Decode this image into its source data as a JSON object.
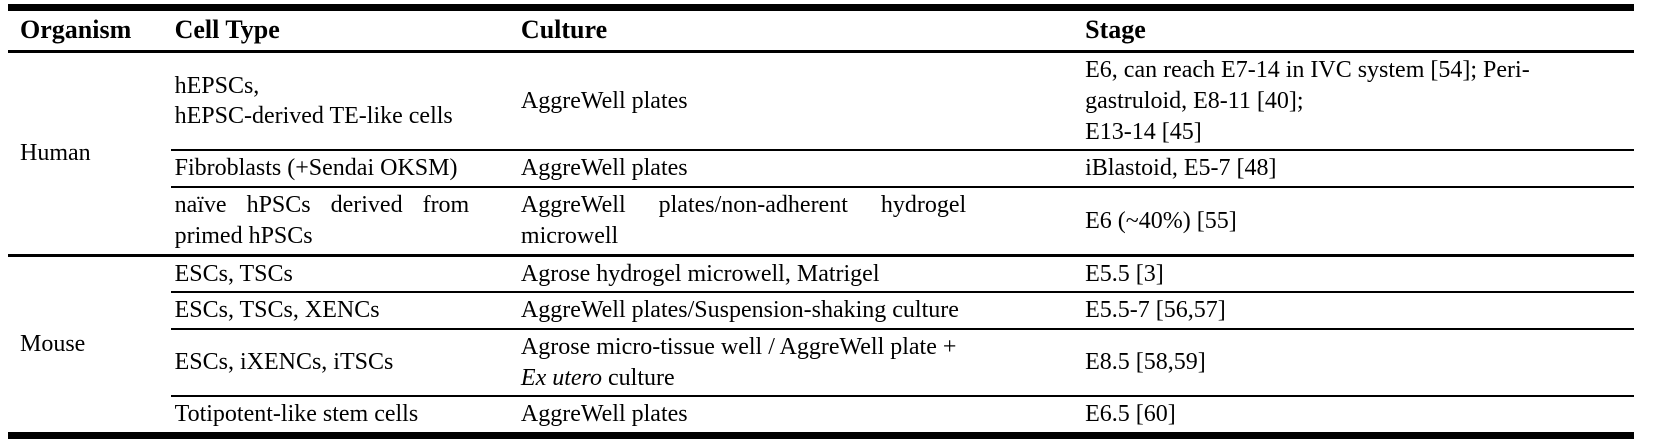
{
  "table": {
    "headers": {
      "organism": "Organism",
      "cell_type": "Cell Type",
      "culture": "Culture",
      "stage": "Stage"
    },
    "groups": [
      {
        "organism": "Human",
        "rows": [
          {
            "cell_type": "hEPSCs,\nhEPSC-derived TE-like cells",
            "culture": "AggreWell plates",
            "stage": "E6, can reach E7-14 in IVC system [54]; Peri-\ngastruloid, E8-11 [40];\nE13-14 [45]"
          },
          {
            "cell_type": "Fibroblasts (+Sendai OKSM)",
            "culture": "AggreWell plates",
            "stage": "iBlastoid, E5-7 [48]"
          },
          {
            "cell_type": "naïve hPSCs derived from\nprimed hPSCs",
            "culture": "AggreWell plates/non-adherent hydrogel\nmicrowell",
            "stage": "E6 (~40%) [55]"
          }
        ]
      },
      {
        "organism": "Mouse",
        "rows": [
          {
            "cell_type": "ESCs, TSCs",
            "culture": "Agrose hydrogel microwell, Matrigel",
            "stage": "E5.5 [3]"
          },
          {
            "cell_type": "ESCs, TSCs, XENCs",
            "culture": "AggreWell plates/Suspension-shaking culture",
            "stage": "E5.5-7 [56,57]"
          },
          {
            "cell_type": "ESCs, iXENCs, iTSCs",
            "culture_parts": {
              "line1": "Agrose micro-tissue well / AggreWell plate +",
              "italic": "Ex utero",
              "rest": " culture"
            },
            "stage": "E8.5 [58,59]"
          },
          {
            "cell_type": "Totipotent-like stem cells",
            "culture": "AggreWell plates",
            "stage": "E6.5 [60]"
          }
        ]
      }
    ]
  }
}
